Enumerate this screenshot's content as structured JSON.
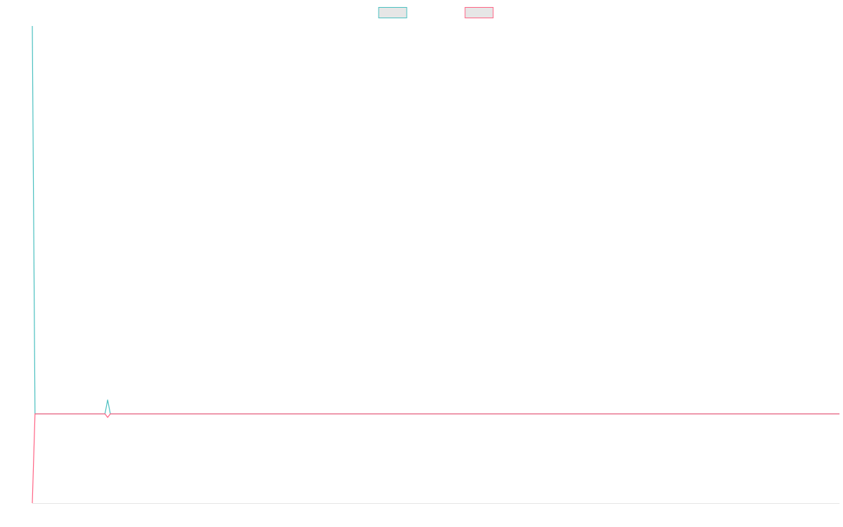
{
  "chart_data": {
    "type": "line",
    "x": [
      0,
      1,
      27,
      28,
      29,
      300
    ],
    "xlim": [
      0,
      300
    ],
    "ylim": [
      -23,
      100
    ],
    "legend": "top",
    "series": [
      {
        "color": "#4bc0c0",
        "values": [
          100,
          0,
          0,
          3.6,
          0,
          0
        ]
      },
      {
        "color": "#ff6384",
        "values": [
          -23,
          0,
          0,
          -0.9,
          0,
          0
        ]
      }
    ]
  }
}
